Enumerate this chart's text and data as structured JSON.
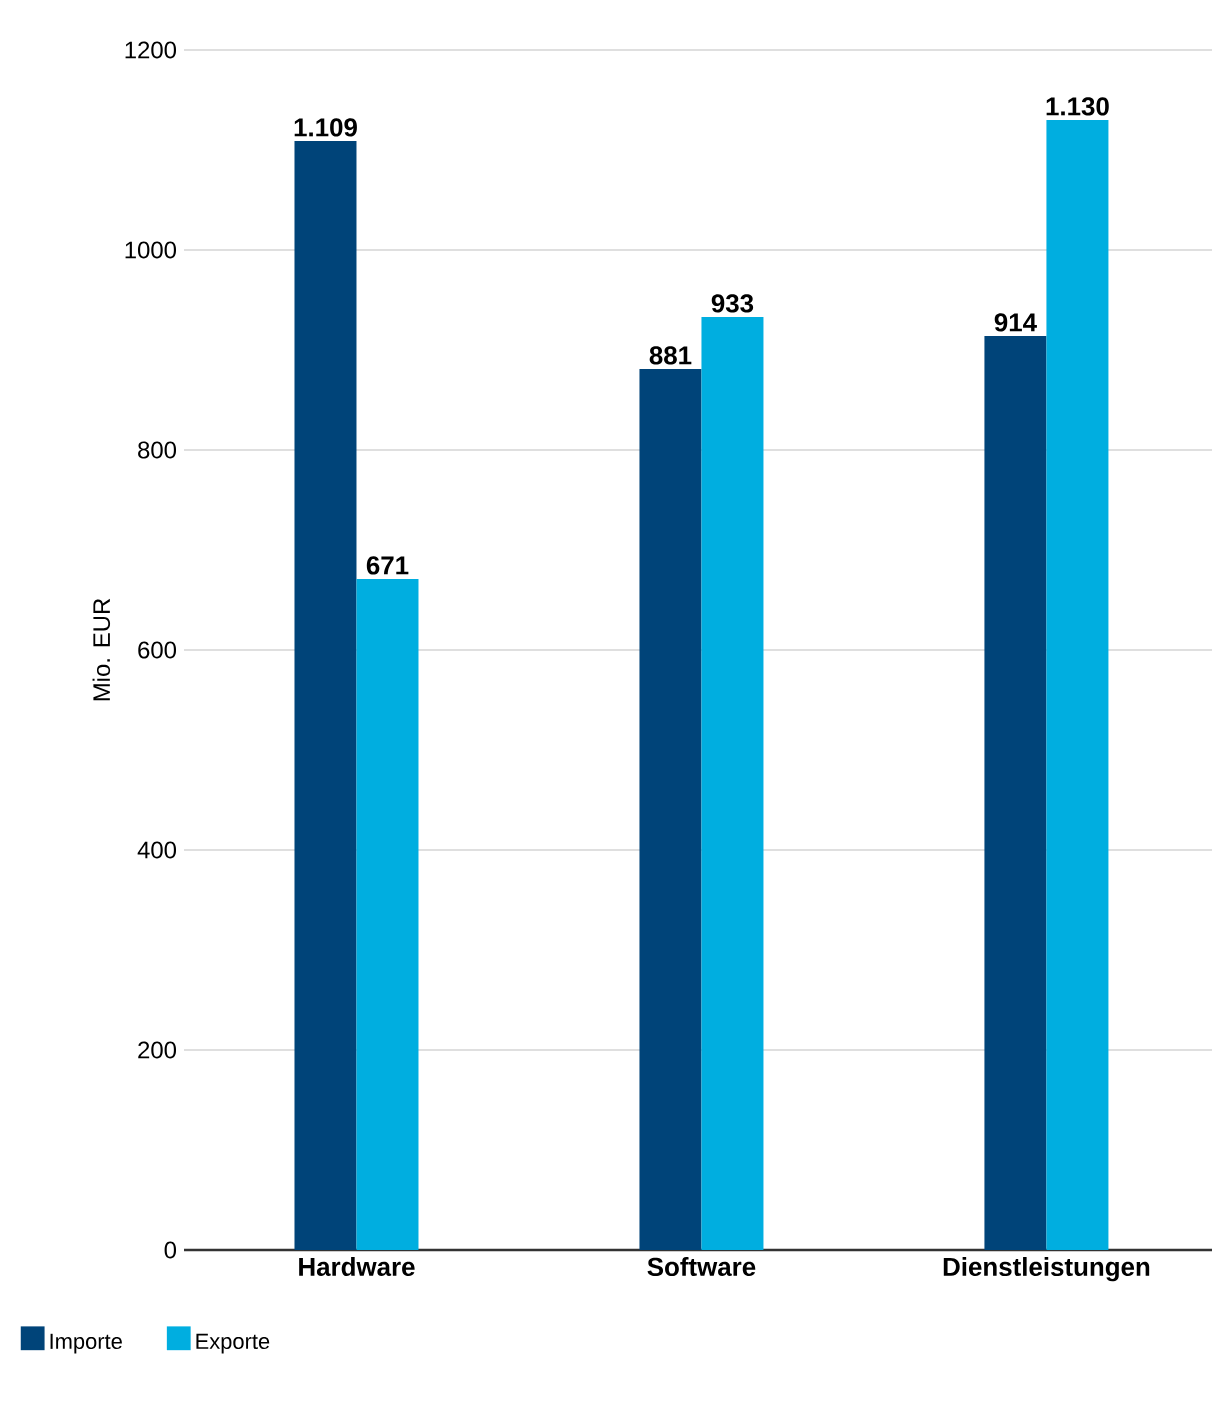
{
  "chart_data": {
    "type": "bar",
    "ylabel": "Mio. EUR",
    "categories": [
      "Hardware",
      "Software",
      "Dienstleistungen"
    ],
    "series": [
      {
        "name": "Importe",
        "color": "#004479",
        "values": [
          1109,
          881,
          914
        ],
        "value_labels": [
          "1.109",
          "881",
          "914"
        ]
      },
      {
        "name": "Exporte",
        "color": "#00aee0",
        "values": [
          671,
          933,
          1130
        ],
        "value_labels": [
          "671",
          "933",
          "1.130"
        ]
      }
    ],
    "ylim": [
      0,
      1200
    ],
    "yticks": [
      0,
      200,
      400,
      600,
      800,
      1000,
      1200
    ],
    "grid": "y",
    "legend": "bottom left"
  }
}
